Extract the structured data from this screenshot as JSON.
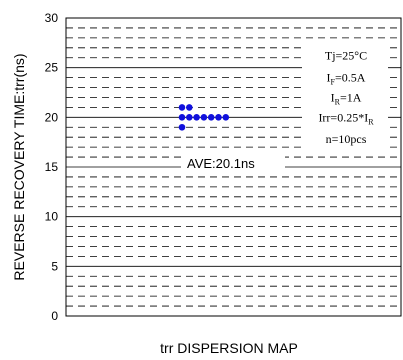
{
  "chart_data": {
    "type": "scatter",
    "xlabel": "trr DISPERSION MAP",
    "ylabel": "REVERSE RECOVERY TIME:trr(ns)",
    "ylim": [
      0,
      30
    ],
    "yticks": [
      "0",
      "5",
      "10",
      "15",
      "20",
      "25",
      "30"
    ],
    "grid": true,
    "points": [
      {
        "col": 0,
        "y": 21
      },
      {
        "col": 1,
        "y": 21
      },
      {
        "col": 0,
        "y": 20
      },
      {
        "col": 1,
        "y": 20
      },
      {
        "col": 2,
        "y": 20
      },
      {
        "col": 3,
        "y": 20
      },
      {
        "col": 4,
        "y": 20
      },
      {
        "col": 5,
        "y": 20
      },
      {
        "col": 6,
        "y": 20
      },
      {
        "col": 0,
        "y": 19
      }
    ],
    "marker_color": "#1010dd",
    "average_label": "AVE:20.1ns",
    "conditions": [
      {
        "main": "Tj=25°C",
        "sub": "",
        "tail": ""
      },
      {
        "main": "I",
        "sub": "F",
        "tail": "=0.5A"
      },
      {
        "main": "I",
        "sub": "R",
        "tail": "=1A"
      },
      {
        "main": "Irr=0.25*I",
        "sub": "R",
        "tail": ""
      },
      {
        "main": "n=10pcs",
        "sub": "",
        "tail": ""
      }
    ]
  }
}
